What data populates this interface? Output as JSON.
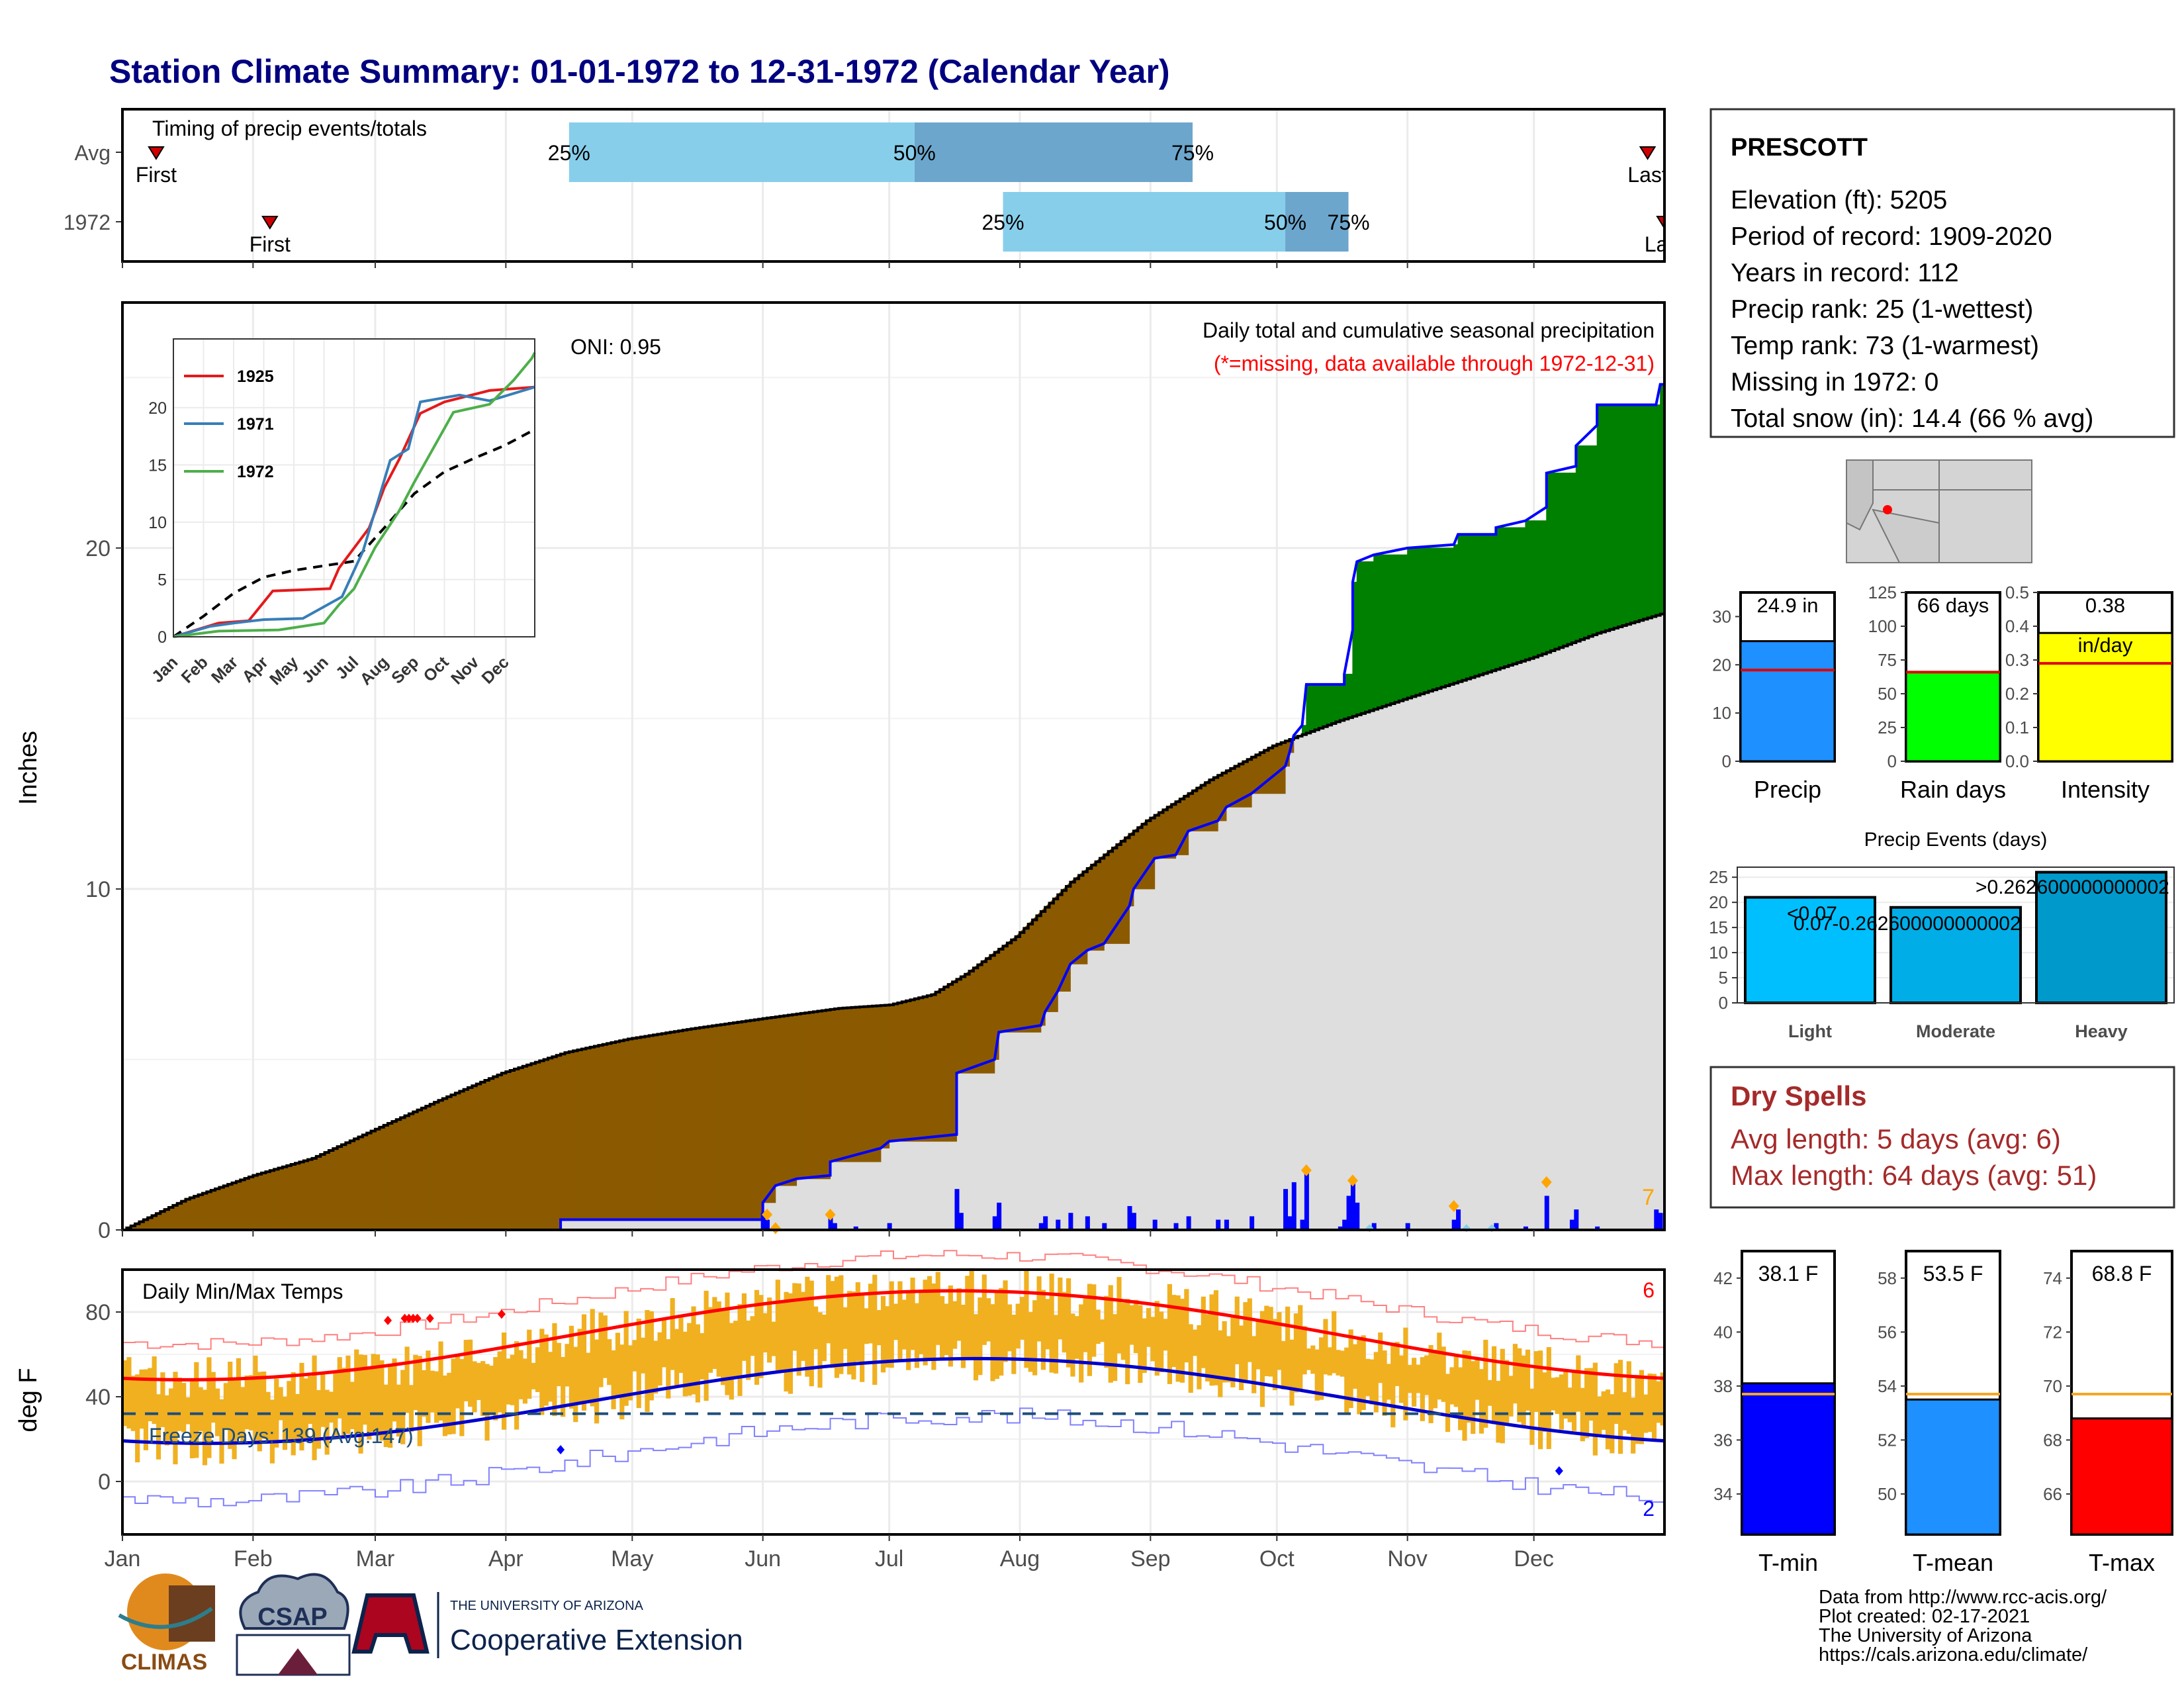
{
  "title": "Station Climate Summary: 01-01-1972 to 12-31-1972 (Calendar Year)",
  "months": [
    "Jan",
    "Feb",
    "Mar",
    "Apr",
    "May",
    "Jun",
    "Jul",
    "Aug",
    "Sep",
    "Oct",
    "Nov",
    "Dec"
  ],
  "colors": {
    "title": "#000080",
    "brown": "#8B5A00",
    "green": "#008000",
    "gray": "#DEDEDE",
    "blue": "#0000FF",
    "orange": "#F0B020",
    "lightblue": "#87CEEB",
    "midblue": "#6CA6CD",
    "red": "#FF0000"
  },
  "timing": {
    "title": "Timing of precip events/totals",
    "rows": [
      {
        "label": "Avg",
        "first_label": "First",
        "last_label": "Last",
        "first_doy": 8,
        "last_doy": 362,
        "p25": 106,
        "p50": 188,
        "p75": 254,
        "p25_label": "25%",
        "p50_label": "50%",
        "p75_label": "75%"
      },
      {
        "label": "1972",
        "first_label": "First",
        "last_label": "Last",
        "first_doy": 35,
        "last_doy": 366,
        "p25": 209,
        "p50": 276,
        "p75": 291,
        "p25_label": "25%",
        "p50_label": "50%",
        "p75_label": "75%"
      }
    ]
  },
  "precip": {
    "ylabel": "Inches",
    "yticks": [
      0,
      10,
      20
    ],
    "oni_label": "ONI: 0.95",
    "legend_title": "Daily total and cumulative seasonal precipitation",
    "missing_note": "(*=missing, data available through 1972-12-31)",
    "count_label": "7",
    "avg_cum": [
      [
        0,
        0
      ],
      [
        15,
        0.9
      ],
      [
        31,
        1.6
      ],
      [
        45,
        2.1
      ],
      [
        59,
        2.9
      ],
      [
        75,
        3.8
      ],
      [
        90,
        4.6
      ],
      [
        105,
        5.2
      ],
      [
        120,
        5.6
      ],
      [
        135,
        5.9
      ],
      [
        152,
        6.2
      ],
      [
        170,
        6.5
      ],
      [
        182,
        6.6
      ],
      [
        192,
        6.9
      ],
      [
        200,
        7.5
      ],
      [
        212,
        8.6
      ],
      [
        225,
        10.2
      ],
      [
        243,
        12.0
      ],
      [
        258,
        13.2
      ],
      [
        273,
        14.2
      ],
      [
        288,
        14.9
      ],
      [
        305,
        15.6
      ],
      [
        320,
        16.2
      ],
      [
        335,
        16.8
      ],
      [
        350,
        17.5
      ],
      [
        366,
        18.1
      ]
    ],
    "obs_cum": [
      [
        0,
        0
      ],
      [
        104,
        0
      ],
      [
        104,
        0.3
      ],
      [
        152,
        0.3
      ],
      [
        152,
        0.8
      ],
      [
        155,
        1.3
      ],
      [
        160,
        1.5
      ],
      [
        168,
        1.6
      ],
      [
        168,
        2.0
      ],
      [
        180,
        2.4
      ],
      [
        182,
        2.6
      ],
      [
        198,
        2.8
      ],
      [
        198,
        4.6
      ],
      [
        207,
        5.0
      ],
      [
        208,
        5.8
      ],
      [
        218,
        6.0
      ],
      [
        219,
        6.4
      ],
      [
        222,
        7.0
      ],
      [
        225,
        7.8
      ],
      [
        229,
        8.2
      ],
      [
        233,
        8.4
      ],
      [
        239,
        9.5
      ],
      [
        240,
        10.0
      ],
      [
        245,
        10.9
      ],
      [
        250,
        11.0
      ],
      [
        253,
        11.7
      ],
      [
        260,
        12.0
      ],
      [
        262,
        12.4
      ],
      [
        268,
        12.8
      ],
      [
        276,
        13.6
      ],
      [
        277,
        14.0
      ],
      [
        278,
        14.5
      ],
      [
        280,
        14.8
      ],
      [
        281,
        16.0
      ],
      [
        290,
        16.0
      ],
      [
        290,
        16.3
      ],
      [
        292,
        17.6
      ],
      [
        292,
        19.0
      ],
      [
        293,
        19.6
      ],
      [
        297,
        19.8
      ],
      [
        305,
        20.0
      ],
      [
        316,
        20.1
      ],
      [
        317,
        20.4
      ],
      [
        326,
        20.4
      ],
      [
        326,
        20.6
      ],
      [
        333,
        20.8
      ],
      [
        338,
        21.2
      ],
      [
        338,
        22.2
      ],
      [
        345,
        22.4
      ],
      [
        345,
        23.0
      ],
      [
        350,
        23.6
      ],
      [
        350,
        24.2
      ],
      [
        364,
        24.2
      ],
      [
        365,
        24.8
      ],
      [
        366,
        24.8
      ]
    ],
    "daily": [
      [
        152,
        0.5
      ],
      [
        153,
        0.3
      ],
      [
        155,
        0.1
      ],
      [
        168,
        0.4
      ],
      [
        169,
        0.2
      ],
      [
        174,
        0.1
      ],
      [
        182,
        0.2
      ],
      [
        198,
        1.2
      ],
      [
        199,
        0.5
      ],
      [
        207,
        0.4
      ],
      [
        208,
        0.8
      ],
      [
        218,
        0.2
      ],
      [
        219,
        0.4
      ],
      [
        222,
        0.3
      ],
      [
        225,
        0.5
      ],
      [
        229,
        0.4
      ],
      [
        233,
        0.2
      ],
      [
        239,
        0.7
      ],
      [
        240,
        0.5
      ],
      [
        245,
        0.3
      ],
      [
        250,
        0.2
      ],
      [
        253,
        0.4
      ],
      [
        260,
        0.3
      ],
      [
        262,
        0.3
      ],
      [
        268,
        0.4
      ],
      [
        276,
        1.2
      ],
      [
        277,
        0.4
      ],
      [
        278,
        1.4
      ],
      [
        280,
        0.3
      ],
      [
        281,
        1.7
      ],
      [
        289,
        0.1
      ],
      [
        290,
        0.3
      ],
      [
        291,
        1.0
      ],
      [
        292,
        1.4
      ],
      [
        293,
        0.8
      ],
      [
        297,
        0.2
      ],
      [
        305,
        0.2
      ],
      [
        316,
        0.3
      ],
      [
        317,
        0.6
      ],
      [
        326,
        0.2
      ],
      [
        333,
        0.1
      ],
      [
        338,
        1.0
      ],
      [
        344,
        0.3
      ],
      [
        345,
        0.6
      ],
      [
        350,
        0.1
      ],
      [
        364,
        0.6
      ],
      [
        365,
        0.5
      ]
    ]
  },
  "inset": {
    "yticks": [
      0,
      5,
      10,
      15,
      20
    ],
    "legend": [
      {
        "name": "1925",
        "color": "#E41A1C"
      },
      {
        "name": "1971",
        "color": "#377EB8"
      },
      {
        "name": "1972",
        "color": "#4DAF4A"
      }
    ]
  },
  "temps": {
    "title": "Daily Min/Max Temps",
    "ylabel": "deg F",
    "yticks": [
      0,
      40,
      80
    ],
    "freeze_label": "Freeze Days: 139 (Avg:147)",
    "max_count": "6",
    "min_count": "2"
  },
  "station": {
    "name": "PRESCOTT",
    "lines": [
      "Elevation (ft): 5205",
      "Period of record: 1909-2020",
      "Years in record: 112",
      "Precip rank: 25 (1-wettest)",
      "Temp rank: 73 (1-warmest)",
      "Missing in 1972: 0",
      "Total snow (in): 14.4 (66 % avg)"
    ]
  },
  "summary_bars": [
    {
      "label": "Precip",
      "value_label": "24.9 in",
      "value": 24.9,
      "avg": 18.9,
      "ymax": 35,
      "yticks": [
        0,
        10,
        20,
        30
      ],
      "color": "#1E90FF"
    },
    {
      "label": "Rain days",
      "value_label": "66 days",
      "value": 66,
      "avg": 66,
      "ymax": 125,
      "yticks": [
        0,
        25,
        50,
        75,
        100,
        125
      ],
      "color": "#00FF00"
    },
    {
      "label": "Intensity",
      "value_label": "0.38",
      "value_unit": "in/day",
      "value": 0.38,
      "avg": 0.29,
      "ymax": 0.5,
      "yticks": [
        "0.0",
        "0.1",
        "0.2",
        "0.3",
        "0.4",
        "0.5"
      ],
      "color": "#FFFF00"
    }
  ],
  "events": {
    "title": "Precip Events (days)",
    "yticks": [
      0,
      5,
      10,
      15,
      20,
      25
    ],
    "bars": [
      {
        "label": "Light",
        "value": 21,
        "text": "<0.07",
        "color": "#00BFFF"
      },
      {
        "label": "Moderate",
        "value": 19,
        "text": "0.07-0.262600000000002",
        "color": "#00ADE6"
      },
      {
        "label": "Heavy",
        "value": 26,
        "text": ">0.262600000000002",
        "color": "#0099CC"
      }
    ]
  },
  "dry": {
    "title": "Dry Spells",
    "avg": "Avg length: 5 days (avg: 6)",
    "max": "Max length: 64 days (avg: 51)"
  },
  "temp_bars": [
    {
      "label": "T-min",
      "value_label": "38.1 F",
      "value": 38.1,
      "avg": 37.7,
      "ymin": 32.5,
      "ymax": 43,
      "yticks": [
        34,
        36,
        38,
        40,
        42
      ],
      "color": "#0000FF"
    },
    {
      "label": "T-mean",
      "value_label": "53.5 F",
      "value": 53.5,
      "avg": 53.7,
      "ymin": 48.5,
      "ymax": 59,
      "yticks": [
        50,
        52,
        54,
        56,
        58
      ],
      "color": "#1E90FF"
    },
    {
      "label": "T-max",
      "value_label": "68.8 F",
      "value": 68.8,
      "avg": 69.7,
      "ymin": 64.5,
      "ymax": 75,
      "yticks": [
        66,
        68,
        70,
        72,
        74
      ],
      "color": "#FF0000"
    }
  ],
  "logos": {
    "climas": "CLIMAS",
    "csap": "CSAP",
    "ua_small": "THE UNIVERSITY OF ARIZONA",
    "ua_big": "Cooperative Extension"
  },
  "footer": [
    "Data from http://www.rcc-acis.org/",
    "Plot created: 02-17-2021",
    "The University of Arizona",
    "https://cals.arizona.edu/climate/"
  ]
}
